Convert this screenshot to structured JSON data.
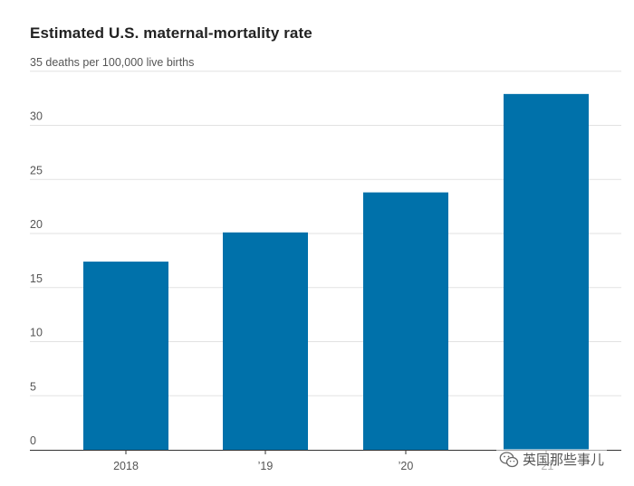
{
  "chart_data": {
    "type": "bar",
    "title": "Estimated U.S. maternal-mortality rate",
    "unit_label": "deaths per 100,000 live births",
    "categories": [
      "2018",
      "’19",
      "’20",
      "’21"
    ],
    "values": [
      17.4,
      20.1,
      23.8,
      32.9
    ],
    "xlabel": "",
    "ylabel": "",
    "ylim": [
      0,
      35
    ],
    "yticks": [
      0,
      5,
      10,
      15,
      20,
      25,
      30,
      35
    ],
    "grid": true,
    "bar_color": "#0071AA"
  },
  "watermark": {
    "text": "英国那些事儿",
    "icon": "wechat-icon"
  }
}
